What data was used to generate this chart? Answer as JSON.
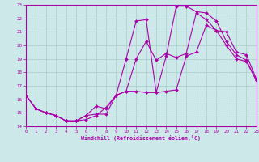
{
  "xlabel": "Windchill (Refroidissement éolien,°C)",
  "xlim": [
    0,
    23
  ],
  "ylim": [
    14,
    23
  ],
  "xticks": [
    0,
    1,
    2,
    3,
    4,
    5,
    6,
    7,
    8,
    9,
    10,
    11,
    12,
    13,
    14,
    15,
    16,
    17,
    18,
    19,
    20,
    21,
    22,
    23
  ],
  "yticks": [
    14,
    15,
    16,
    17,
    18,
    19,
    20,
    21,
    22,
    23
  ],
  "bg_color": "#cde8e8",
  "grid_color": "#aacccc",
  "line_color": "#aa00aa",
  "line1_x": [
    0,
    1,
    2,
    3,
    4,
    5,
    6,
    7,
    8,
    9,
    10,
    11,
    12,
    13,
    14,
    15,
    16,
    17,
    18,
    19,
    20,
    21,
    22,
    23
  ],
  "line1_y": [
    16.3,
    15.3,
    15.0,
    14.8,
    14.4,
    14.4,
    14.5,
    14.8,
    15.4,
    16.3,
    16.6,
    16.6,
    16.5,
    16.5,
    16.6,
    16.7,
    19.2,
    19.5,
    21.5,
    21.1,
    21.0,
    19.5,
    19.3,
    17.5
  ],
  "line2_x": [
    0,
    1,
    2,
    3,
    4,
    5,
    6,
    7,
    8,
    9,
    10,
    11,
    12,
    13,
    14,
    15,
    16,
    17,
    18,
    19,
    20,
    21,
    22,
    23
  ],
  "line2_y": [
    16.3,
    15.3,
    15.0,
    14.8,
    14.4,
    14.4,
    14.8,
    15.5,
    15.3,
    16.3,
    19.0,
    21.8,
    21.9,
    16.5,
    19.2,
    22.9,
    22.9,
    22.5,
    22.4,
    21.8,
    20.3,
    19.3,
    18.9,
    17.4
  ],
  "line3_x": [
    0,
    1,
    2,
    3,
    4,
    5,
    6,
    7,
    8,
    9,
    10,
    11,
    12,
    13,
    14,
    15,
    16,
    17,
    18,
    19,
    20,
    21,
    22,
    23
  ],
  "line3_y": [
    16.3,
    15.3,
    15.0,
    14.8,
    14.4,
    14.4,
    14.8,
    14.9,
    14.9,
    16.3,
    16.6,
    19.0,
    20.3,
    18.9,
    19.4,
    19.1,
    19.4,
    22.4,
    21.9,
    21.1,
    20.0,
    19.0,
    18.8,
    17.4
  ]
}
